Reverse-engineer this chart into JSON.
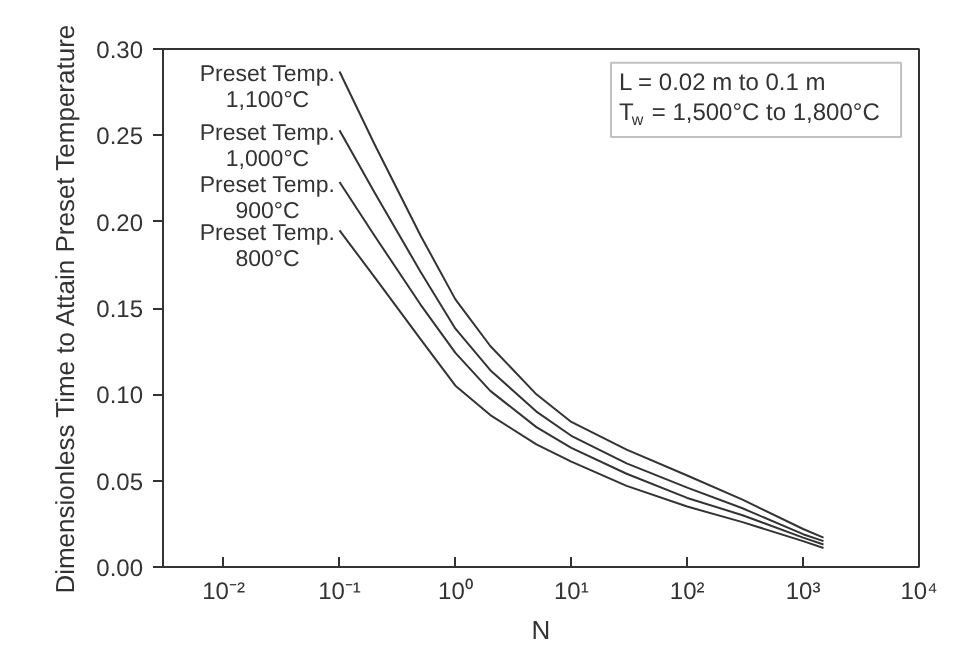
{
  "chart_data": {
    "type": "line",
    "xlabel": "N",
    "ylabel": "Dimensionless Time to Attain Preset Temperature",
    "log": "x",
    "grid": false,
    "marker": "none",
    "line_style": "solid",
    "xlim": [
      0.003,
      10000
    ],
    "ylim": [
      0,
      0.3
    ],
    "xticks": [
      {
        "value": 0.01,
        "label": "10⁻²"
      },
      {
        "value": 0.1,
        "label": "10⁻¹"
      },
      {
        "value": 1,
        "label": "10⁰"
      },
      {
        "value": 10,
        "label": "10¹"
      },
      {
        "value": 100,
        "label": "10²"
      },
      {
        "value": 1000,
        "label": "10³"
      },
      {
        "value": 10000,
        "label": "10⁴"
      }
    ],
    "yticks": [
      {
        "value": 0,
        "label": "0.00"
      },
      {
        "value": 0.05,
        "label": "0.05"
      },
      {
        "value": 0.1,
        "label": "0.10"
      },
      {
        "value": 0.15,
        "label": "0.15"
      },
      {
        "value": 0.2,
        "label": "0.20"
      },
      {
        "value": 0.25,
        "label": "0.25"
      },
      {
        "value": 0.3,
        "label": "0.30"
      }
    ],
    "x": [
      0.1,
      0.2,
      0.5,
      1,
      2,
      5,
      10,
      30,
      100,
      300,
      1000,
      1500
    ],
    "series": [
      {
        "name": "Preset Temp.\n1,100°C",
        "color": "#333333",
        "values": [
          0.287,
          0.245,
          0.192,
          0.155,
          0.128,
          0.1,
          0.084,
          0.068,
          0.053,
          0.039,
          0.022,
          0.017
        ]
      },
      {
        "name": "Preset Temp.\n1,000°C",
        "color": "#333333",
        "values": [
          0.253,
          0.217,
          0.171,
          0.138,
          0.114,
          0.09,
          0.076,
          0.06,
          0.046,
          0.034,
          0.019,
          0.015
        ]
      },
      {
        "name": "Preset Temp.\n900°C",
        "color": "#333333",
        "values": [
          0.223,
          0.192,
          0.152,
          0.124,
          0.102,
          0.081,
          0.069,
          0.054,
          0.04,
          0.03,
          0.017,
          0.013
        ]
      },
      {
        "name": "Preset Temp.\n800°C",
        "color": "#333333",
        "values": [
          0.195,
          0.168,
          0.132,
          0.105,
          0.088,
          0.071,
          0.061,
          0.047,
          0.035,
          0.026,
          0.015,
          0.011
        ]
      }
    ],
    "annotations": [
      "L = 0.02 m to 0.1 m",
      "T$_{w}$ = 1,500°C to 1,800°C"
    ]
  }
}
